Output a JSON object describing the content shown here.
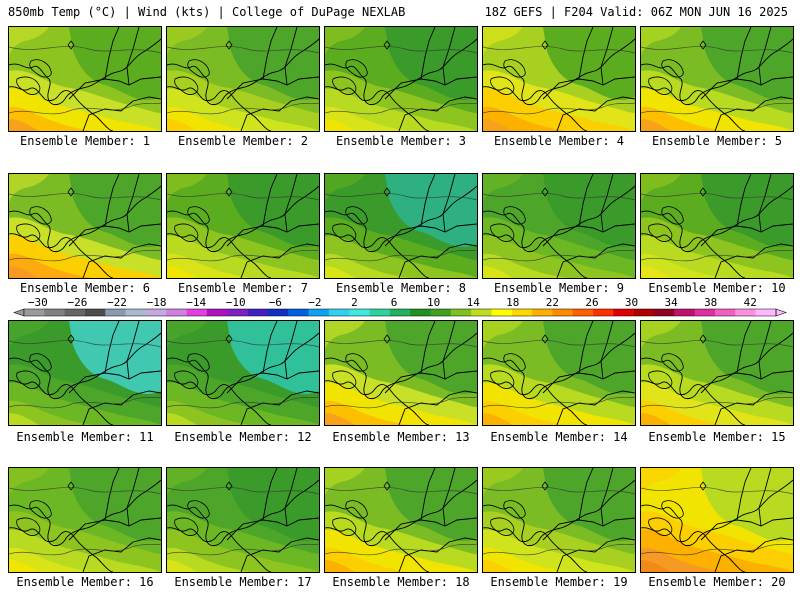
{
  "header": {
    "left": "850mb Temp (°C) | Wind (kts) | College of DuPage NEXLAB",
    "right": "18Z GEFS | F204 Valid: 06Z MON JUN 16 2025"
  },
  "colorbar": {
    "tick_labels": [
      "−30",
      "−26",
      "−22",
      "−18",
      "−14",
      "−10",
      "−6",
      "−2",
      "2",
      "6",
      "10",
      "14",
      "18",
      "22",
      "26",
      "30",
      "34",
      "38",
      "42"
    ],
    "colors": [
      "#9a9a9a",
      "#808080",
      "#666666",
      "#4d4d4d",
      "#8c9ab0",
      "#aab8cc",
      "#c6a8e0",
      "#d080e0",
      "#e040e0",
      "#b010c0",
      "#8020c0",
      "#4020c0",
      "#1030c0",
      "#0060e0",
      "#10a0f0",
      "#30d0f0",
      "#40e8e0",
      "#30d0a0",
      "#20b060",
      "#209020",
      "#40a020",
      "#80c020",
      "#c0dc20",
      "#ffff00",
      "#ffd800",
      "#ffb000",
      "#ff8c00",
      "#ff6000",
      "#ff3000",
      "#e00000",
      "#b00000",
      "#900020",
      "#c01070",
      "#e030a0",
      "#f060c0",
      "#ff90e0",
      "#ffb8ff"
    ]
  },
  "members": [
    {
      "label": "Ensemble Member: 1",
      "palette": [
        "#5cac20",
        "#8ec420",
        "#c8e028",
        "#f0e400",
        "#fcc000",
        "#f7a21a"
      ]
    },
    {
      "label": "Ensemble Member: 2",
      "palette": [
        "#4da62a",
        "#7bbc24",
        "#a8d020",
        "#d0e41e",
        "#f0e400",
        "#fcd000"
      ]
    },
    {
      "label": "Ensemble Member: 3",
      "palette": [
        "#3a9a2a",
        "#5cac20",
        "#8ec420",
        "#b8da20",
        "#d8e418",
        "#f0e400"
      ]
    },
    {
      "label": "Ensemble Member: 4",
      "palette": [
        "#5cac20",
        "#a8d020",
        "#e0e418",
        "#fcd000",
        "#fcb000",
        "#f7a21a"
      ]
    },
    {
      "label": "Ensemble Member: 5",
      "palette": [
        "#4da62a",
        "#7bbc24",
        "#b8da20",
        "#f0e400",
        "#fcc000",
        "#f7a21a"
      ]
    },
    {
      "label": "Ensemble Member: 6",
      "palette": [
        "#4da62a",
        "#7bbc24",
        "#c8e028",
        "#fcd000",
        "#fcaa10",
        "#f79a24"
      ]
    },
    {
      "label": "Ensemble Member: 7",
      "palette": [
        "#3a9a2a",
        "#5cac20",
        "#8ec420",
        "#b8da20",
        "#d8e418",
        "#f0e400"
      ]
    },
    {
      "label": "Ensemble Member: 8",
      "palette": [
        "#2fb080",
        "#3a9a2a",
        "#5cac20",
        "#8ec420",
        "#b8da20",
        "#d8e418"
      ]
    },
    {
      "label": "Ensemble Member: 9",
      "palette": [
        "#3a9a2a",
        "#4da62a",
        "#6cb824",
        "#8ec420",
        "#b8da20",
        "#d8e418"
      ]
    },
    {
      "label": "Ensemble Member: 10",
      "palette": [
        "#3a9a2a",
        "#5cac20",
        "#8ec420",
        "#b8da20",
        "#d0e41e",
        "#e8e418"
      ]
    },
    {
      "label": "Ensemble Member: 11",
      "palette": [
        "#40c8b0",
        "#3a9a2a",
        "#4da62a",
        "#6cb824",
        "#8ec420",
        "#b8da20"
      ]
    },
    {
      "label": "Ensemble Member: 12",
      "palette": [
        "#30c09a",
        "#3a9a2a",
        "#4da62a",
        "#6cb824",
        "#8ec420",
        "#b8da20"
      ]
    },
    {
      "label": "Ensemble Member: 13",
      "palette": [
        "#4da62a",
        "#7bbc24",
        "#c8e028",
        "#f0e400",
        "#fcc000",
        "#f7a21a"
      ]
    },
    {
      "label": "Ensemble Member: 14",
      "palette": [
        "#4da62a",
        "#7bbc24",
        "#b8da20",
        "#f0e400",
        "#fcd000",
        "#fcb000"
      ]
    },
    {
      "label": "Ensemble Member: 15",
      "palette": [
        "#4da62a",
        "#7bbc24",
        "#b8da20",
        "#e0e418",
        "#fcd000",
        "#fcb000"
      ]
    },
    {
      "label": "Ensemble Member: 16",
      "palette": [
        "#4da62a",
        "#6cb824",
        "#8ec420",
        "#b8da20",
        "#d8e418",
        "#f0e400"
      ]
    },
    {
      "label": "Ensemble Member: 17",
      "palette": [
        "#3a9a2a",
        "#4da62a",
        "#6cb824",
        "#8ec420",
        "#b8da20",
        "#d8e418"
      ]
    },
    {
      "label": "Ensemble Member: 18",
      "palette": [
        "#4da62a",
        "#7bbc24",
        "#b8da20",
        "#f0e400",
        "#fcd000",
        "#fcb000"
      ]
    },
    {
      "label": "Ensemble Member: 19",
      "palette": [
        "#4da62a",
        "#7bbc24",
        "#a8d020",
        "#d0e41e",
        "#f0e400",
        "#fcd000"
      ]
    },
    {
      "label": "Ensemble Member: 20",
      "palette": [
        "#b8da20",
        "#f0e400",
        "#fcd000",
        "#fcb000",
        "#f79a24",
        "#f28a1a"
      ]
    }
  ]
}
